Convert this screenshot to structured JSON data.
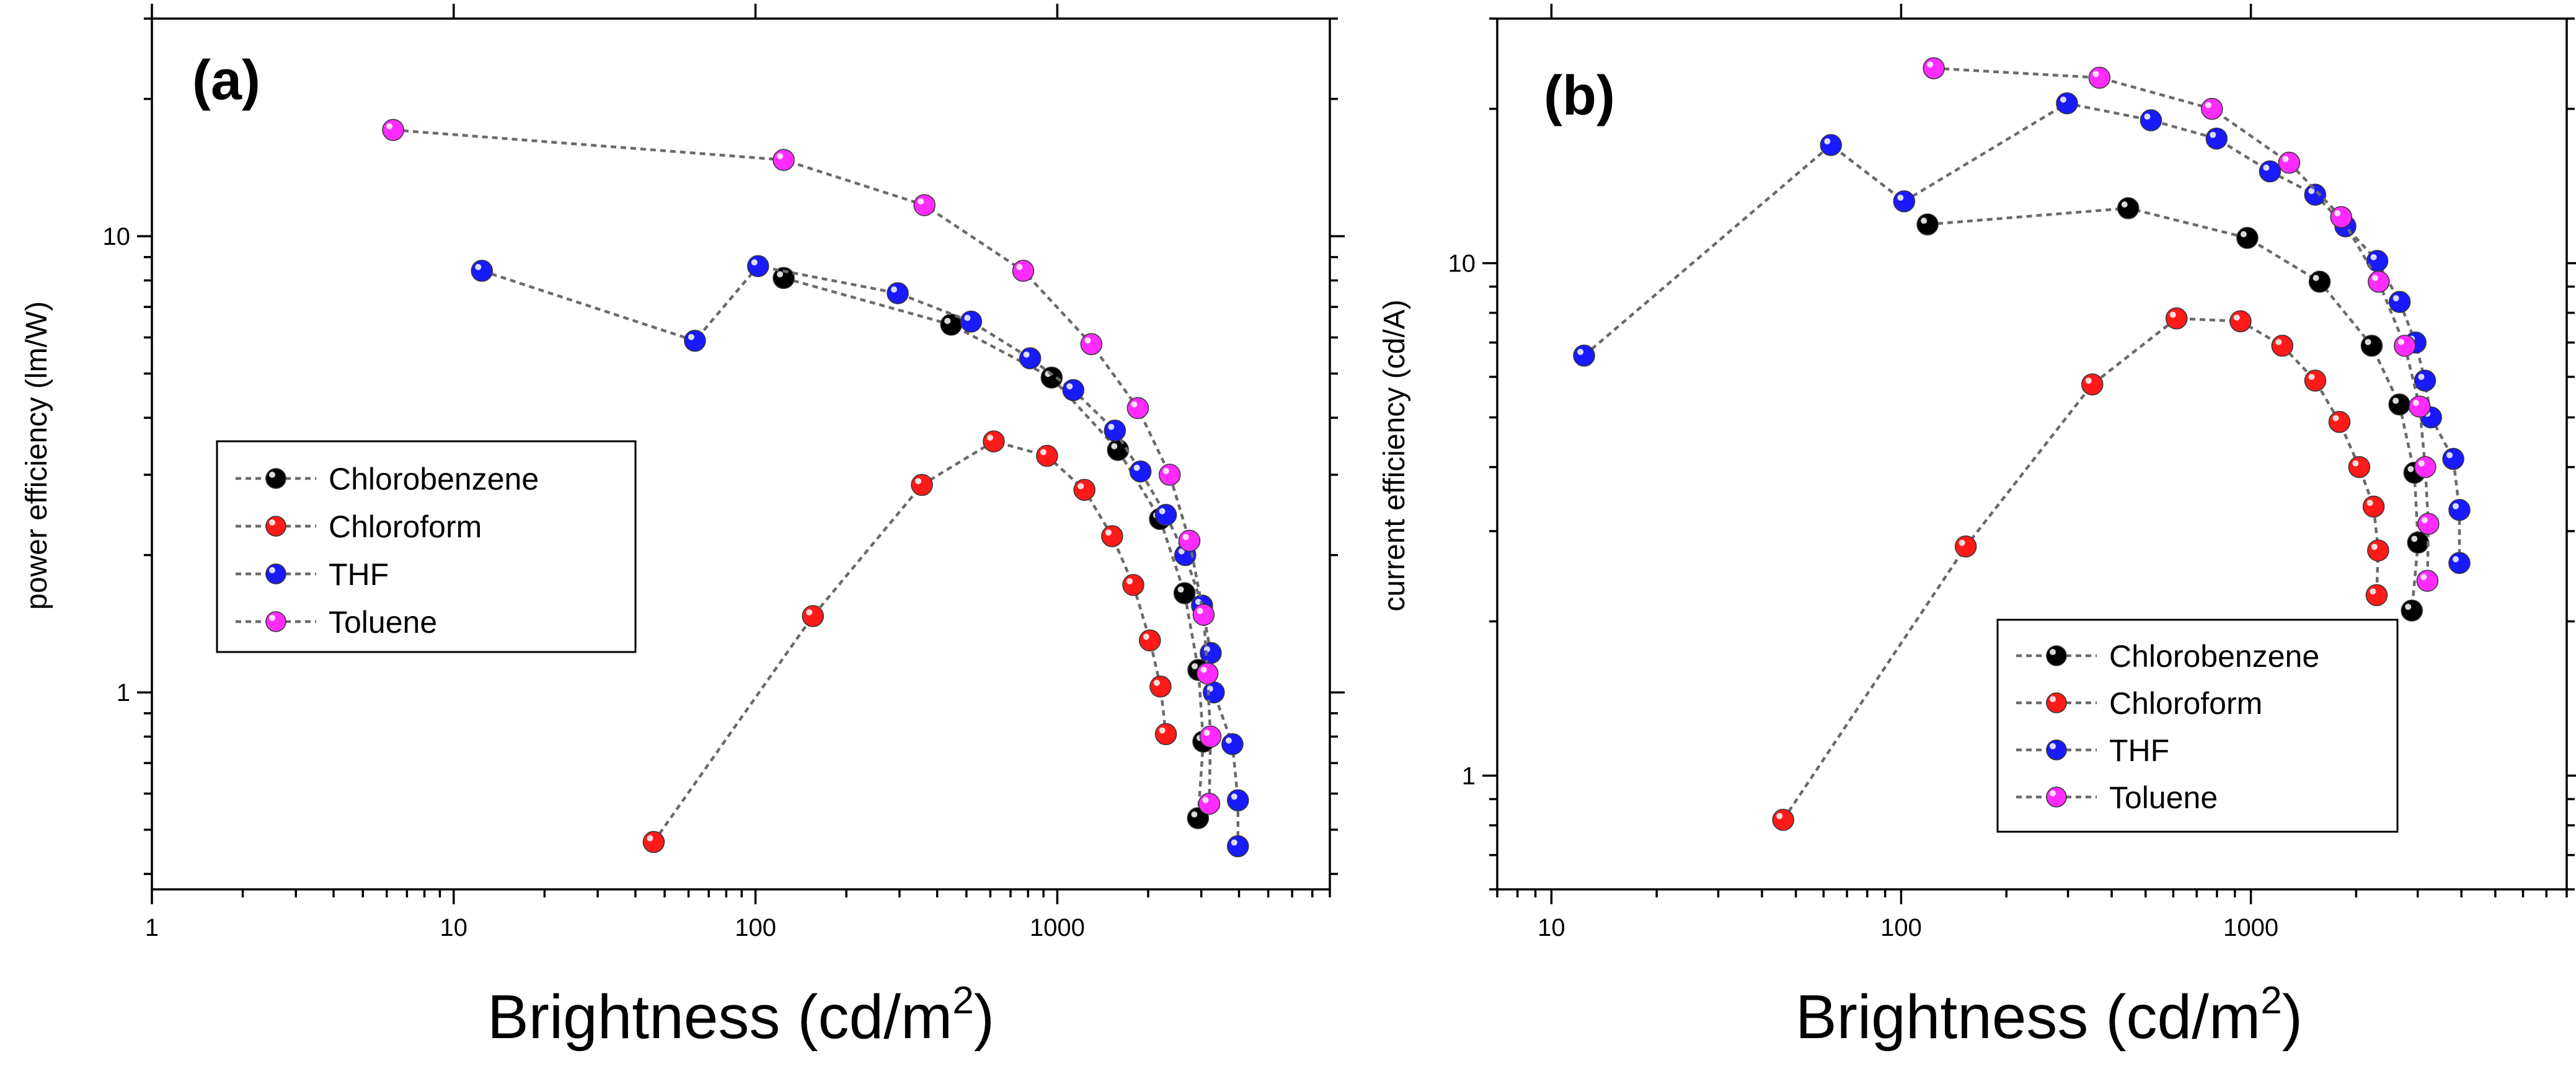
{
  "colors": {
    "Chlorobenzene": "#000000",
    "Chloroform": "#ff1a1a",
    "THF": "#1a1aff",
    "Toluene": "#ff2bff"
  },
  "chart_data": [
    {
      "type": "scatter",
      "panel_label": "(a)",
      "xscale": "log",
      "yscale": "log",
      "xlabel": "Brightness (cd/m",
      "xlabel_sup": "2",
      "xlabel_close": ")",
      "ylabel": "power efficiency (lm/W)",
      "xlim": [
        1,
        8000
      ],
      "ylim": [
        0.37,
        30
      ],
      "x_ticks": [
        1,
        10,
        100,
        1000
      ],
      "x_tick_labels": [
        "1",
        "10",
        "100",
        "1000"
      ],
      "y_ticks": [
        1,
        10
      ],
      "y_tick_labels": [
        "1",
        "10"
      ],
      "legend_position": "middle-left",
      "legend": [
        "Chlorobenzene",
        "Chloroform",
        "THF",
        "Toluene"
      ],
      "series": [
        {
          "name": "Chlorobenzene",
          "x": [
            124,
            445,
            958,
            1589,
            2189,
            2640,
            2935,
            3047,
            2926
          ],
          "y": [
            8.1,
            6.4,
            4.9,
            3.4,
            2.4,
            1.65,
            1.12,
            0.78,
            0.53
          ]
        },
        {
          "name": "Chloroform",
          "x": [
            46,
            155,
            356,
            616,
            925,
            1230,
            1520,
            1786,
            2027,
            2198,
            2290
          ],
          "y": [
            0.47,
            1.47,
            2.85,
            3.55,
            3.3,
            2.78,
            2.2,
            1.72,
            1.3,
            1.03,
            0.81
          ]
        },
        {
          "name": "THF",
          "x": [
            12.4,
            63,
            102,
            296,
            518,
            813,
            1130,
            1552,
            1887,
            2290,
            2654,
            3018,
            3224,
            3300,
            3804,
            3968,
            3968
          ],
          "y": [
            8.4,
            5.9,
            8.6,
            7.5,
            6.5,
            5.4,
            4.6,
            3.75,
            3.05,
            2.45,
            2.0,
            1.55,
            1.22,
            1.0,
            0.77,
            0.58,
            0.46
          ]
        },
        {
          "name": "Toluene",
          "x": [
            6.3,
            124,
            363,
            771,
            1297,
            1849,
            2358,
            2740,
            3054,
            3145,
            3218,
            3187
          ],
          "y": [
            17.1,
            14.7,
            11.7,
            8.4,
            5.8,
            4.2,
            3.0,
            2.15,
            1.48,
            1.1,
            0.8,
            0.57
          ]
        }
      ]
    },
    {
      "type": "scatter",
      "panel_label": "(b)",
      "xscale": "log",
      "yscale": "log",
      "xlabel": "Brightness (cd/m",
      "xlabel_sup": "2",
      "xlabel_close": ")",
      "ylabel": "current efficiency (cd/A)",
      "xlim": [
        7,
        8000
      ],
      "ylim": [
        0.6,
        30
      ],
      "x_ticks": [
        10,
        100,
        1000
      ],
      "x_tick_labels": [
        "10",
        "100",
        "1000"
      ],
      "y_ticks": [
        1,
        10
      ],
      "y_tick_labels": [
        "1",
        "10"
      ],
      "legend_position": "bottom-right",
      "legend": [
        "Chlorobenzene",
        "Chloroform",
        "THF",
        "Toluene"
      ],
      "series": [
        {
          "name": "Chlorobenzene",
          "x": [
            119,
            446,
            977,
            1573,
            2216,
            2659,
            2935,
            3007,
            2886
          ],
          "y": [
            11.9,
            12.8,
            11.2,
            9.2,
            6.9,
            5.3,
            3.9,
            2.85,
            2.1
          ]
        },
        {
          "name": "Chloroform",
          "x": [
            46,
            153,
            352,
            613,
            934,
            1230,
            1528,
            1792,
            2041,
            2244,
            2312,
            2289
          ],
          "y": [
            0.82,
            2.8,
            5.8,
            7.8,
            7.7,
            6.9,
            5.9,
            4.9,
            4.0,
            3.35,
            2.75,
            2.25
          ]
        },
        {
          "name": "THF",
          "x": [
            12.4,
            63,
            102,
            298,
            518,
            798,
            1134,
            1527,
            1863,
            2299,
            2664,
            2957,
            3147,
            3274,
            3791,
            3948,
            3948
          ],
          "y": [
            6.6,
            17.0,
            13.2,
            20.5,
            19.0,
            17.5,
            15.1,
            13.6,
            11.8,
            10.1,
            8.4,
            7.0,
            5.9,
            5.0,
            4.15,
            3.3,
            2.6
          ]
        },
        {
          "name": "Toluene",
          "x": [
            124,
            369,
            774,
            1287,
            1812,
            2321,
            2755,
            3038,
            3152,
            3217,
            3198
          ],
          "y": [
            24.0,
            23.0,
            20.0,
            15.7,
            12.3,
            9.2,
            6.9,
            5.25,
            4.0,
            3.1,
            2.4
          ]
        }
      ]
    }
  ]
}
